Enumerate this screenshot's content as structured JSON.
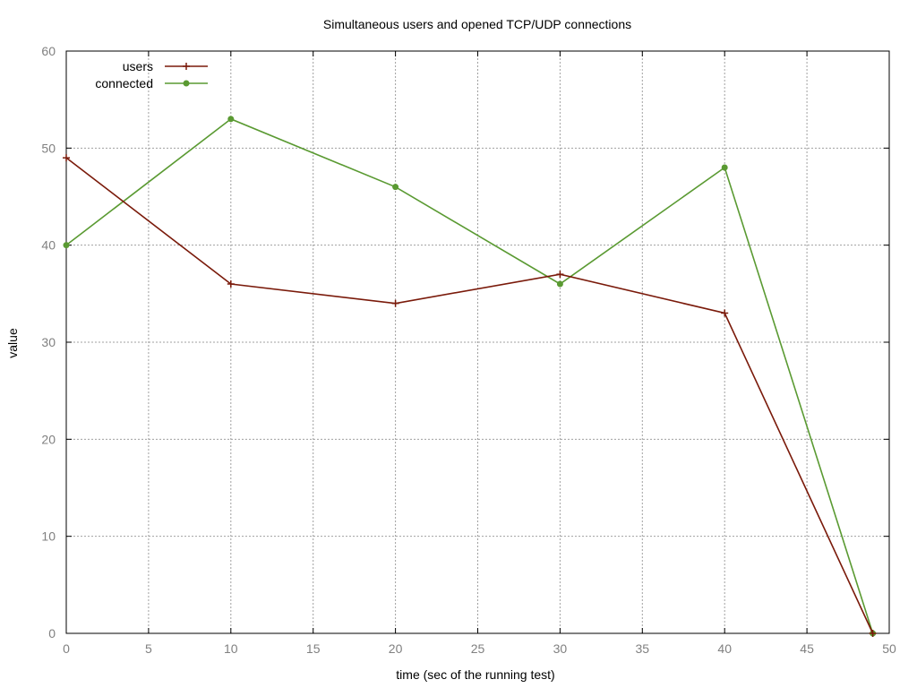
{
  "chart_data": {
    "type": "line",
    "title": "Simultaneous users and opened TCP/UDP connections",
    "xlabel": "time (sec of the running test)",
    "ylabel": "value",
    "xlim": [
      0,
      50
    ],
    "ylim": [
      0,
      60
    ],
    "x_ticks": [
      0,
      5,
      10,
      15,
      20,
      25,
      30,
      35,
      40,
      45,
      50
    ],
    "y_ticks": [
      0,
      10,
      20,
      30,
      40,
      50,
      60
    ],
    "grid": true,
    "legend_position": "top-left",
    "series": [
      {
        "name": "users",
        "color": "#7a1a0a",
        "marker": "plus",
        "x": [
          0,
          10,
          20,
          30,
          40,
          49
        ],
        "values": [
          49,
          36,
          34,
          37,
          33,
          0
        ]
      },
      {
        "name": "connected",
        "color": "#5a9a32",
        "marker": "circle",
        "x": [
          0,
          10,
          20,
          30,
          40,
          49
        ],
        "values": [
          40,
          53,
          46,
          36,
          48,
          0
        ]
      }
    ]
  }
}
